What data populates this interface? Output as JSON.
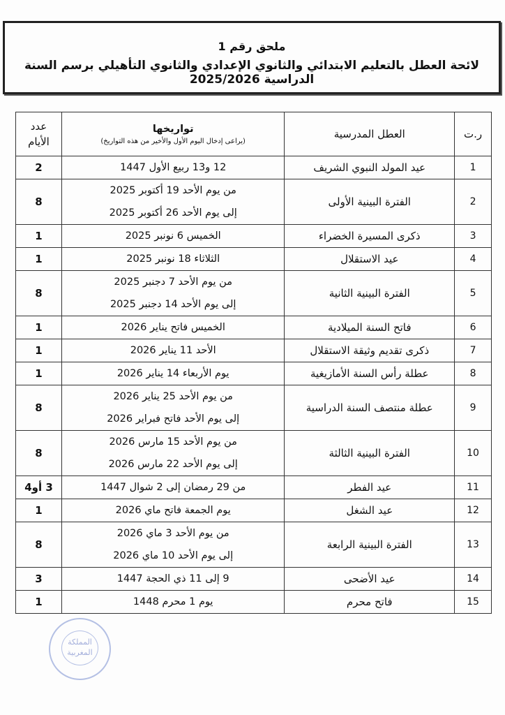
{
  "header": {
    "annex": "ملحق رقم 1",
    "title": "لائحة العطل بالتعليم الابتدائي والثانوي الإعدادي والثانوي التأهيلي برسم السنة الدراسية 2025/2026"
  },
  "table": {
    "columns": {
      "num": "ر.ت",
      "name": "العطل المدرسية",
      "dates": "تواريخها",
      "dates_note": "(يراعى إدخال اليوم الأول والأخير من هذه التواريخ)",
      "days_line1": "عدد",
      "days_line2": "الأيام"
    },
    "rows": [
      {
        "num": "1",
        "name": "عيد المولد النبوي الشريف",
        "dates": [
          "12 و13 ربيع الأول 1447"
        ],
        "days": "2"
      },
      {
        "num": "2",
        "name": "الفترة البينية الأولى",
        "dates": [
          "من يوم الأحد 19 أكتوبر 2025",
          "إلى يوم الأحد 26 أكتوبر 2025"
        ],
        "days": "8"
      },
      {
        "num": "3",
        "name": "ذكرى المسيرة الخضراء",
        "dates": [
          "الخميس 6 نونبر 2025"
        ],
        "days": "1"
      },
      {
        "num": "4",
        "name": "عيد الاستقلال",
        "dates": [
          "الثلاثاء 18 نونبر 2025"
        ],
        "days": "1"
      },
      {
        "num": "5",
        "name": "الفترة البينية الثانية",
        "dates": [
          "من يوم الأحد 7 دجنبر 2025",
          "إلى يوم الأحد 14 دجنبر 2025"
        ],
        "days": "8"
      },
      {
        "num": "6",
        "name": "فاتح السنة الميلادية",
        "dates": [
          "الخميس فاتح يناير 2026"
        ],
        "days": "1"
      },
      {
        "num": "7",
        "name": "ذكرى تقديم وثيقة الاستقلال",
        "dates": [
          "الأحد 11 يناير 2026"
        ],
        "days": "1"
      },
      {
        "num": "8",
        "name": "عطلة رأس السنة الأمازيغية",
        "dates": [
          "يوم الأربعاء 14 يناير 2026"
        ],
        "days": "1"
      },
      {
        "num": "9",
        "name": "عطلة منتصف السنة الدراسية",
        "dates": [
          "من يوم الأحد 25 يناير 2026",
          "إلى يوم الأحد فاتح فبراير 2026"
        ],
        "days": "8"
      },
      {
        "num": "10",
        "name": "الفترة البينية الثالثة",
        "dates": [
          "من يوم الأحد 15 مارس 2026",
          "إلى يوم الأحد 22 مارس 2026"
        ],
        "days": "8"
      },
      {
        "num": "11",
        "name": "عيد الفطر",
        "dates": [
          "من 29 رمضان إلى 2 شوال 1447"
        ],
        "days": "3 أو4"
      },
      {
        "num": "12",
        "name": "عيد الشغل",
        "dates": [
          "يوم الجمعة فاتح ماي 2026"
        ],
        "days": "1"
      },
      {
        "num": "13",
        "name": "الفترة البينية الرابعة",
        "dates": [
          "من يوم الأحد 3 ماي 2026",
          "إلى يوم الأحد 10 ماي 2026"
        ],
        "days": "8"
      },
      {
        "num": "14",
        "name": "عيد الأضحى",
        "dates": [
          "9 إلى 11 ذي الحجة 1447"
        ],
        "days": "3"
      },
      {
        "num": "15",
        "name": "فاتح محرم",
        "dates": [
          "يوم 1 محرم 1448"
        ],
        "days": "1"
      }
    ]
  },
  "stamp": {
    "text_line1": "المملكة",
    "text_line2": "المغربية",
    "color": "#7a8fd0"
  }
}
